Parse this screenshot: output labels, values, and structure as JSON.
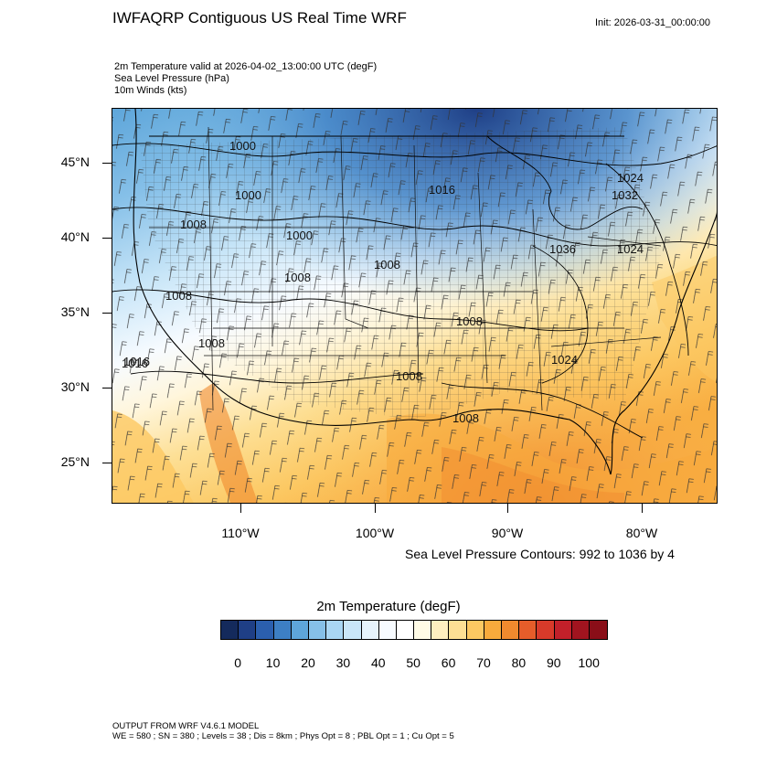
{
  "header": {
    "title": "IWFAQRP Contiguous US Real Time WRF",
    "init": "Init: 2026-03-31_00:00:00",
    "subtitle_lines": [
      "2m Temperature valid at 2026-04-02_13:00:00 UTC   (degF)",
      "Sea Level Pressure   (hPa)",
      "10m Winds   (kts)"
    ]
  },
  "map": {
    "lat_ticks": [
      "45°N",
      "40°N",
      "35°N",
      "30°N",
      "25°N"
    ],
    "lon_ticks": [
      "110°W",
      "100°W",
      "90°W",
      "80°W"
    ],
    "pressure_labels": [
      "1000",
      "1000",
      "1016",
      "1024",
      "1032",
      "1008",
      "1000",
      "1008",
      "1008",
      "1036",
      "1024",
      "1008",
      "1008",
      "1008",
      "1016",
      "1008",
      "1024",
      "1008",
      "1016"
    ],
    "contour_note": "Sea Level Pressure Contours: 992 to 1036 by 4"
  },
  "legend": {
    "title": "2m Temperature  (degF)",
    "labels": [
      "0",
      "10",
      "20",
      "30",
      "40",
      "50",
      "60",
      "70",
      "80",
      "90",
      "100"
    ],
    "colors": [
      "#142a5c",
      "#1f3f86",
      "#2b5fae",
      "#3d7fc4",
      "#5ea6da",
      "#86c0e8",
      "#a9d6f3",
      "#c9e6f8",
      "#e6f3fb",
      "#f7fbff",
      "#ffffff",
      "#fffbe6",
      "#feefc0",
      "#fddf94",
      "#fcc862",
      "#f8aa3c",
      "#f08a2e",
      "#e65d2a",
      "#d83a2a",
      "#c2202a",
      "#a1141f",
      "#8a0e18"
    ]
  },
  "footer": {
    "line1": "OUTPUT FROM WRF V4.6.1 MODEL",
    "line2": "WE = 580 ; SN = 380 ; Levels = 38 ; Dis = 8km ; Phys Opt = 8 ; PBL Opt = 1 ; Cu Opt = 5"
  }
}
